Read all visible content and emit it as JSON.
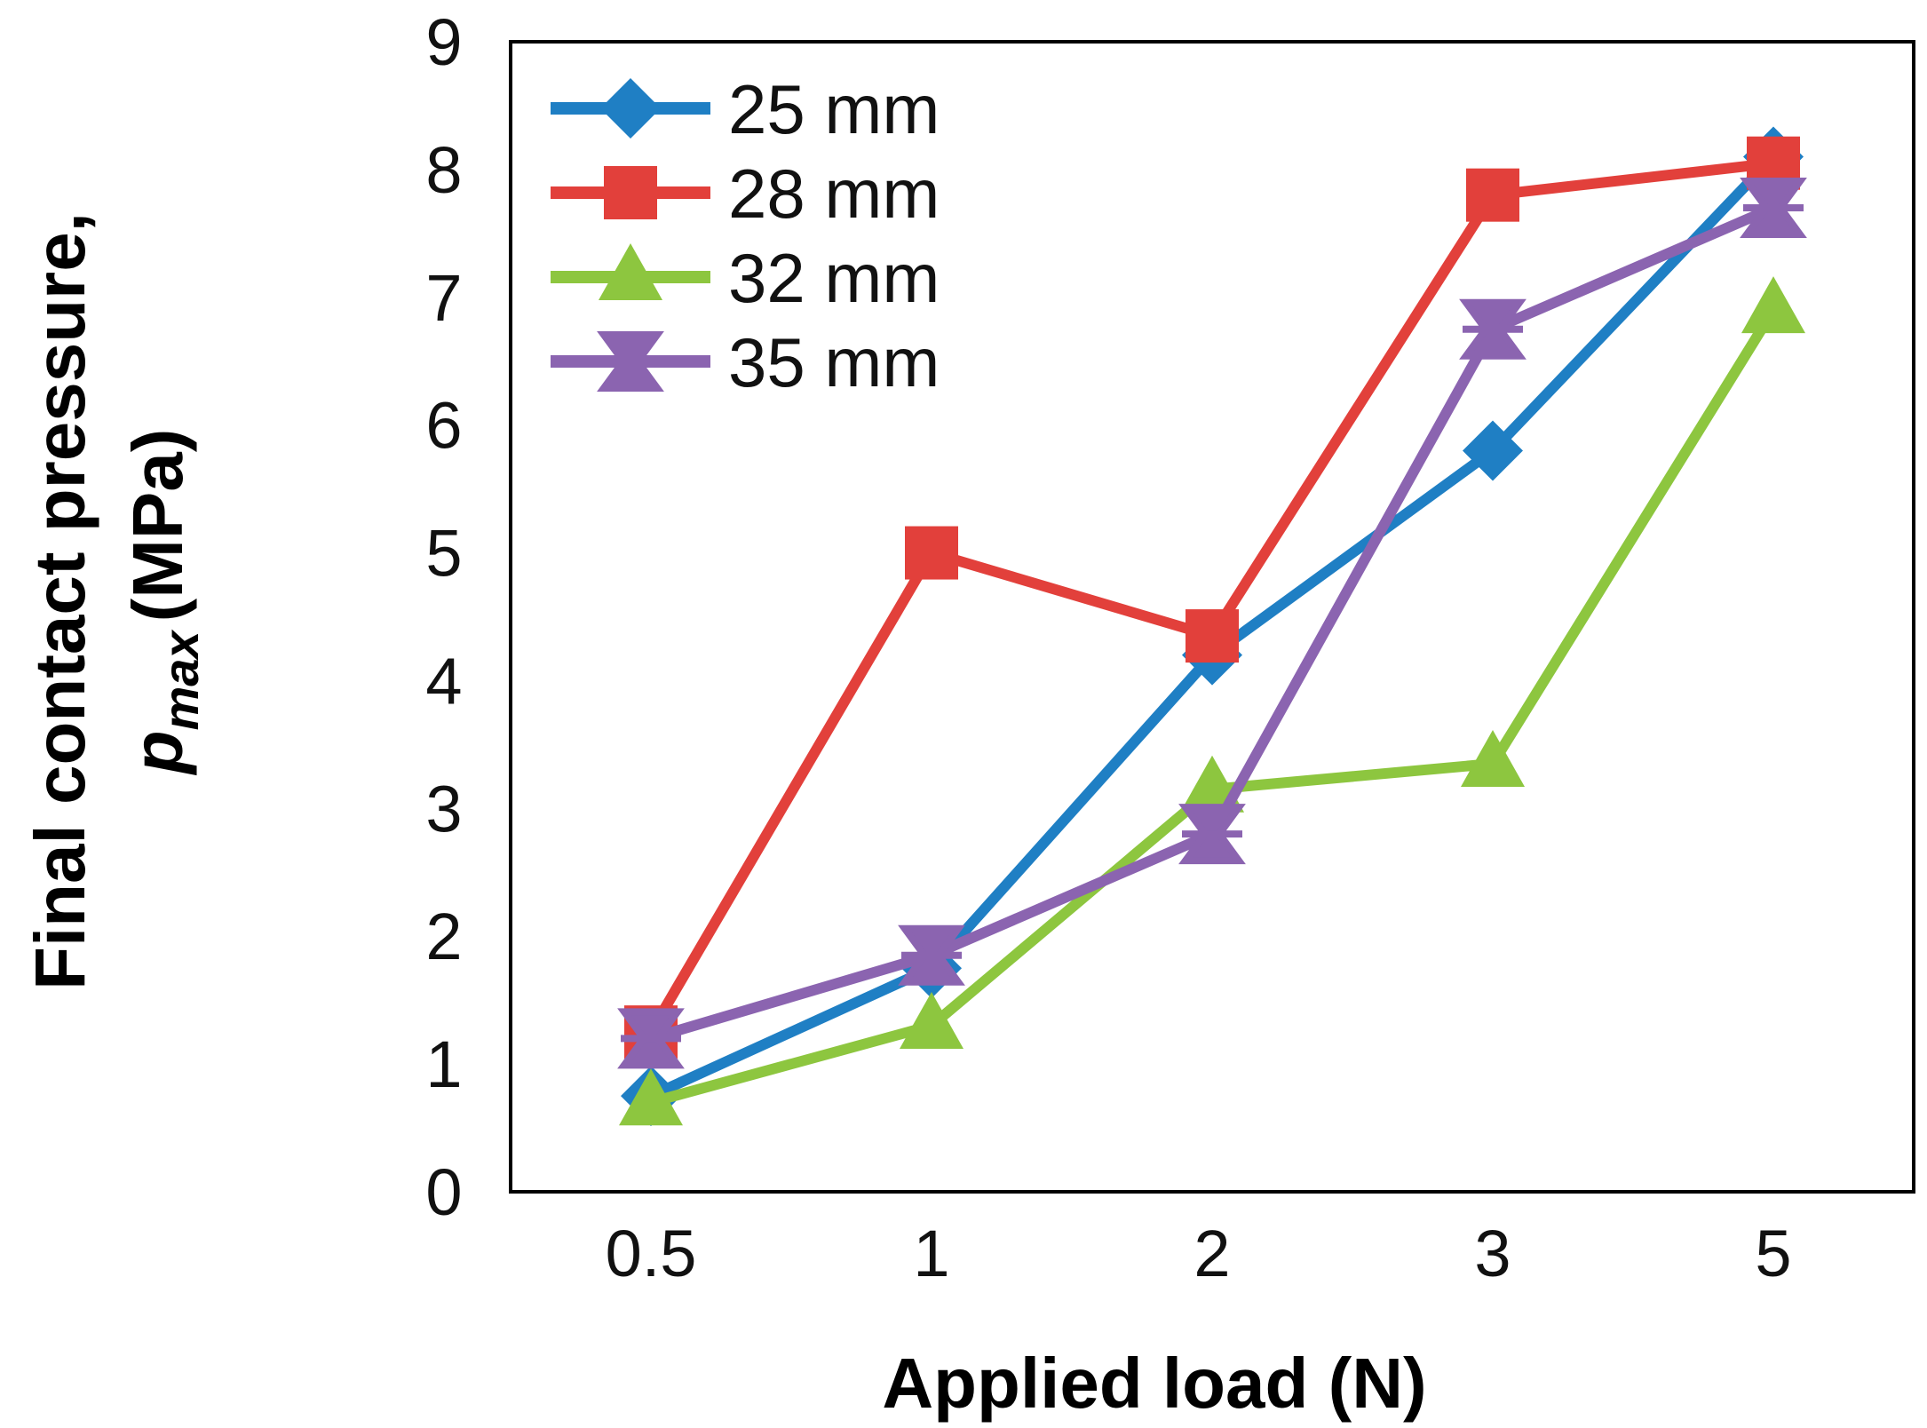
{
  "chart_data": {
    "type": "line",
    "title": "",
    "xlabel": "Applied load (N)",
    "ylabel_line1": "Final contact pressure,",
    "ylabel_symbol": "p",
    "ylabel_subscript": "max",
    "ylabel_unit": "(MPa)",
    "categories": [
      "0.5",
      "1",
      "2",
      "3",
      "5"
    ],
    "ylim": [
      0,
      9
    ],
    "yticks": [
      "0",
      "1",
      "2",
      "3",
      "4",
      "5",
      "6",
      "7",
      "8",
      "9"
    ],
    "grid": false,
    "legend_position": "top-left",
    "series": [
      {
        "name": "25 mm",
        "color": "#1F7FC4",
        "marker": "diamond",
        "values": [
          0.75,
          1.75,
          4.2,
          5.8,
          8.1
        ]
      },
      {
        "name": "28 mm",
        "color": "#E2403B",
        "marker": "square",
        "values": [
          1.25,
          5.0,
          4.35,
          7.8,
          8.05
        ]
      },
      {
        "name": "32 mm",
        "color": "#8DC63F",
        "marker": "triangle",
        "values": [
          0.7,
          1.3,
          3.15,
          3.35,
          6.9
        ]
      },
      {
        "name": "35 mm",
        "color": "#8B64B0",
        "marker": "star",
        "values": [
          1.2,
          1.85,
          2.8,
          6.75,
          7.7
        ]
      }
    ]
  }
}
